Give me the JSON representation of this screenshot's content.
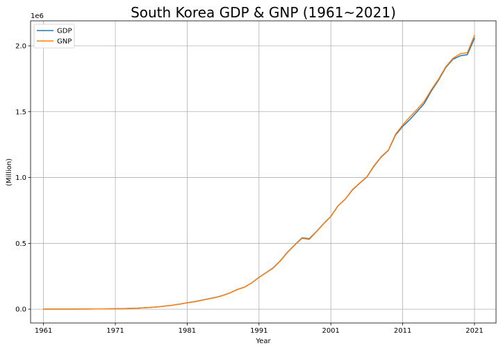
{
  "chart_data": {
    "type": "line",
    "title": "South Korea GDP & GNP (1961~2021)",
    "xlabel": "Year",
    "ylabel": "(Million)",
    "y_offset_label": "1e6",
    "xlim": [
      1959.2,
      2024.0
    ],
    "ylim": [
      -0.105,
      2.19
    ],
    "x_ticks": [
      1961,
      1971,
      1981,
      1991,
      2001,
      2011,
      2021
    ],
    "x_tick_labels": [
      "1961",
      "1971",
      "1981",
      "1991",
      "2001",
      "2011",
      "2021"
    ],
    "y_ticks": [
      0.0,
      0.5,
      1.0,
      1.5,
      2.0
    ],
    "y_tick_labels": [
      "0.0",
      "0.5",
      "1.0",
      "1.5",
      "2.0"
    ],
    "grid": true,
    "legend_position": "upper-left",
    "x": [
      1961,
      1962,
      1963,
      1964,
      1965,
      1966,
      1967,
      1968,
      1969,
      1970,
      1971,
      1972,
      1973,
      1974,
      1975,
      1976,
      1977,
      1978,
      1979,
      1980,
      1981,
      1982,
      1983,
      1984,
      1985,
      1986,
      1987,
      1988,
      1989,
      1990,
      1991,
      1992,
      1993,
      1994,
      1995,
      1996,
      1997,
      1998,
      1999,
      2000,
      2001,
      2002,
      2003,
      2004,
      2005,
      2006,
      2007,
      2008,
      2009,
      2010,
      2011,
      2012,
      2013,
      2014,
      2015,
      2016,
      2017,
      2018,
      2019,
      2020,
      2021
    ],
    "series": [
      {
        "name": "GDP",
        "color": "#1f77b4",
        "values": [
          0.0003,
          0.0004,
          0.0005,
          0.0007,
          0.0008,
          0.001,
          0.0013,
          0.0016,
          0.0021,
          0.0028,
          0.0034,
          0.0041,
          0.0055,
          0.0074,
          0.0101,
          0.014,
          0.0179,
          0.024,
          0.0305,
          0.039,
          0.049,
          0.057,
          0.068,
          0.079,
          0.09,
          0.105,
          0.125,
          0.15,
          0.168,
          0.2,
          0.242,
          0.278,
          0.315,
          0.37,
          0.435,
          0.49,
          0.542,
          0.535,
          0.59,
          0.65,
          0.705,
          0.785,
          0.835,
          0.905,
          0.955,
          1.003,
          1.085,
          1.155,
          1.205,
          1.322,
          1.388,
          1.44,
          1.5,
          1.562,
          1.658,
          1.74,
          1.836,
          1.898,
          1.924,
          1.933,
          2.058
        ]
      },
      {
        "name": "GNP",
        "color": "#ff7f0e",
        "values": [
          0.0003,
          0.0004,
          0.0005,
          0.0007,
          0.0008,
          0.001,
          0.0013,
          0.0016,
          0.0021,
          0.0028,
          0.0034,
          0.0041,
          0.0055,
          0.0074,
          0.0101,
          0.014,
          0.0179,
          0.024,
          0.0305,
          0.039,
          0.048,
          0.056,
          0.067,
          0.078,
          0.089,
          0.104,
          0.124,
          0.149,
          0.168,
          0.2,
          0.241,
          0.277,
          0.313,
          0.368,
          0.433,
          0.488,
          0.538,
          0.53,
          0.588,
          0.648,
          0.703,
          0.784,
          0.835,
          0.908,
          0.957,
          1.005,
          1.089,
          1.158,
          1.208,
          1.328,
          1.399,
          1.46,
          1.517,
          1.578,
          1.668,
          1.748,
          1.842,
          1.905,
          1.94,
          1.948,
          2.08
        ]
      }
    ]
  }
}
